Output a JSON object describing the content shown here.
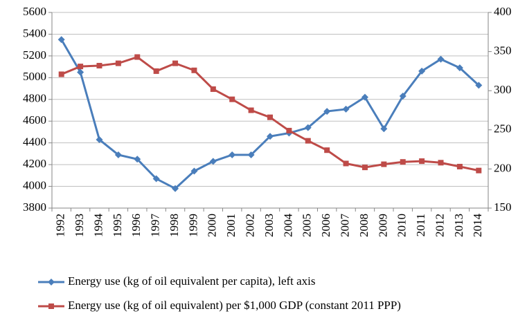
{
  "chart_data": {
    "type": "line",
    "categories": [
      "1992",
      "1993",
      "1994",
      "1995",
      "1996",
      "1997",
      "1998",
      "1999",
      "2000",
      "2001",
      "2002",
      "2003",
      "2004",
      "2005",
      "2006",
      "2007",
      "2008",
      "2009",
      "2010",
      "2011",
      "2012",
      "2013",
      "2014"
    ],
    "series": [
      {
        "name": "Energy use (kg of oil equivalent per capita), left axis",
        "color": "#4a7ebb",
        "marker": "diamond",
        "values": [
          5350,
          5050,
          4430,
          4290,
          4250,
          4070,
          3980,
          4140,
          4230,
          4290,
          4290,
          4460,
          4490,
          4540,
          4690,
          4710,
          4820,
          4530,
          4830,
          5060,
          5170,
          5090,
          4930
        ]
      },
      {
        "name": "Energy use (kg of oil equivalent) per $1,000 GDP (constant 2011 PPP)",
        "color": "#be4b48",
        "marker": "square",
        "axis": "y2",
        "values": [
          321,
          331,
          332,
          335,
          343,
          325,
          335,
          326,
          302,
          289,
          275,
          266,
          249,
          236,
          224,
          207,
          202,
          206,
          209,
          210,
          208,
          203,
          198
        ]
      }
    ],
    "ylim": [
      3800,
      5600
    ],
    "yticks": [
      3800,
      4000,
      4200,
      4400,
      4600,
      4800,
      5000,
      5200,
      5400,
      5600
    ],
    "y2lim": [
      150,
      400
    ],
    "y2ticks": [
      150,
      200,
      250,
      300,
      350,
      400
    ],
    "grid": true,
    "legend": "bottom"
  }
}
